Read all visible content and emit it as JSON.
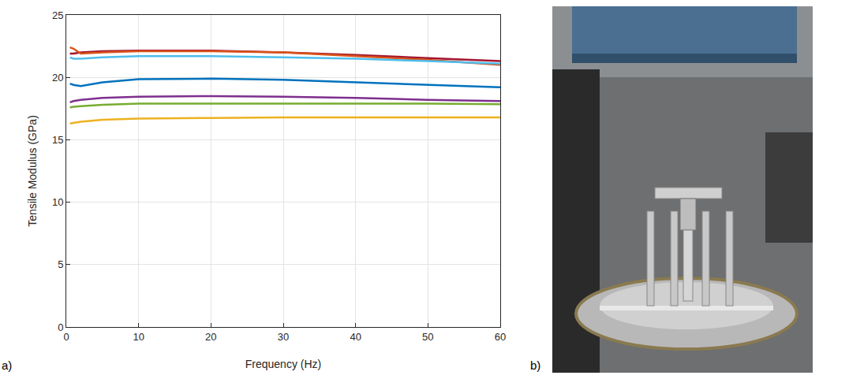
{
  "chart_data": {
    "type": "line",
    "x_label": "Frequency (Hz)",
    "y_label": "Tensile Modulus (GPa)",
    "x": [
      0.5,
      1,
      2,
      5,
      10,
      20,
      30,
      40,
      50,
      60
    ],
    "series": [
      {
        "color": "#A2142F",
        "values": [
          21.9,
          21.9,
          22.0,
          22.1,
          22.15,
          22.15,
          22.0,
          21.8,
          21.55,
          21.3
        ]
      },
      {
        "color": "#D95319",
        "values": [
          22.4,
          22.3,
          21.9,
          22.0,
          22.1,
          22.1,
          22.0,
          21.7,
          21.4,
          21.0
        ]
      },
      {
        "color": "#4DBEEE",
        "values": [
          21.6,
          21.5,
          21.5,
          21.6,
          21.7,
          21.7,
          21.6,
          21.5,
          21.3,
          21.1
        ]
      },
      {
        "color": "#0072BD",
        "values": [
          19.5,
          19.4,
          19.3,
          19.6,
          19.85,
          19.9,
          19.8,
          19.6,
          19.4,
          19.2
        ]
      },
      {
        "color": "#7E2F8E",
        "values": [
          18.0,
          18.1,
          18.2,
          18.35,
          18.45,
          18.5,
          18.45,
          18.35,
          18.2,
          18.1
        ]
      },
      {
        "color": "#77AC30",
        "values": [
          17.6,
          17.65,
          17.7,
          17.8,
          17.9,
          17.9,
          17.9,
          17.9,
          17.9,
          17.85
        ]
      },
      {
        "color": "#EDB120",
        "values": [
          16.3,
          16.35,
          16.45,
          16.6,
          16.7,
          16.75,
          16.8,
          16.8,
          16.8,
          16.8
        ]
      }
    ],
    "xlim": [
      0,
      60
    ],
    "xticks": [
      0,
      10,
      20,
      30,
      40,
      50,
      60
    ],
    "ylim": [
      0,
      25
    ],
    "yticks": [
      0,
      5,
      10,
      15,
      20,
      25
    ],
    "grid": true
  },
  "panel_labels": [
    "a)",
    "b)"
  ]
}
